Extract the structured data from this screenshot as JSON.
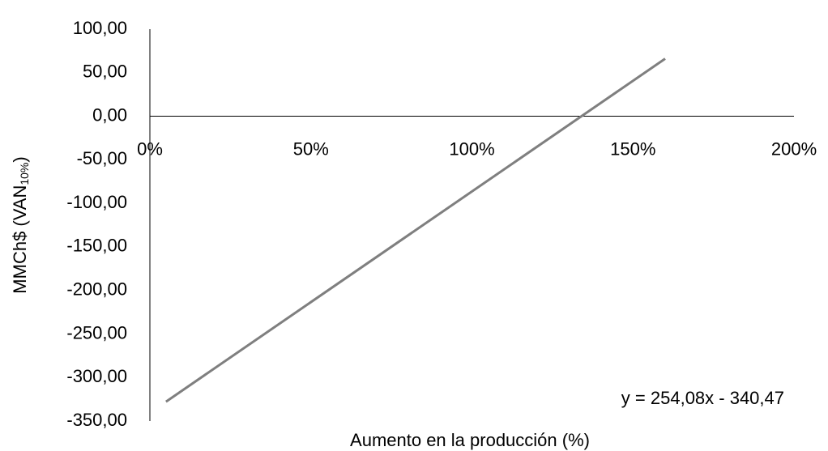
{
  "chart_data": {
    "type": "line",
    "x": [
      0.05,
      1.6
    ],
    "series": [
      {
        "name": "VAN",
        "color": "#7f7f7f",
        "values": [
          -327.77,
          66.06
        ]
      }
    ],
    "xlim": [
      0,
      2
    ],
    "xticks": [
      {
        "value": 0,
        "label": "0%"
      },
      {
        "value": 0.5,
        "label": "50%"
      },
      {
        "value": 1,
        "label": "100%"
      },
      {
        "value": 1.5,
        "label": "150%"
      },
      {
        "value": 2,
        "label": "200%"
      }
    ],
    "ylim": [
      -350,
      100
    ],
    "yticks": [
      {
        "value": 100,
        "label": "100,00"
      },
      {
        "value": 50,
        "label": "50,00"
      },
      {
        "value": 0,
        "label": "0,00"
      },
      {
        "value": -50,
        "label": "-50,00"
      },
      {
        "value": -100,
        "label": "-100,00"
      },
      {
        "value": -150,
        "label": "-150,00"
      },
      {
        "value": -200,
        "label": "-200,00"
      },
      {
        "value": -250,
        "label": "-250,00"
      },
      {
        "value": -300,
        "label": "-300,00"
      },
      {
        "value": -350,
        "label": "-350,00"
      }
    ],
    "xlabel": "Aumento en la producción (%)",
    "ylabel": {
      "text": "MMCh$ (VAN",
      "subscript": "10%",
      "suffix": ")"
    },
    "annotation": "y = 254,08x - 340,47",
    "grid": false
  }
}
